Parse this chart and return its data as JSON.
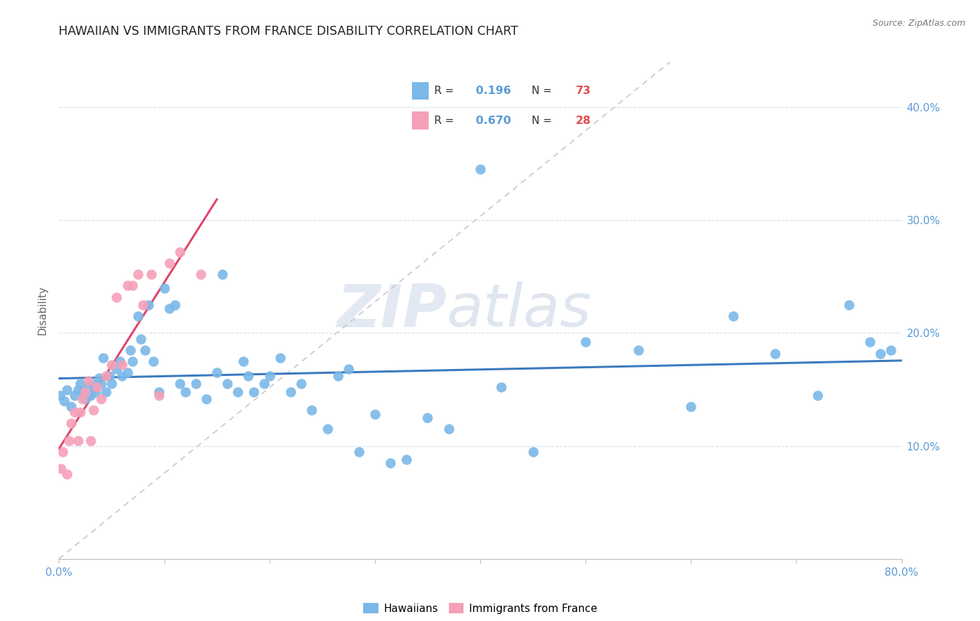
{
  "title": "HAWAIIAN VS IMMIGRANTS FROM FRANCE DISABILITY CORRELATION CHART",
  "source": "Source: ZipAtlas.com",
  "ylabel": "Disability",
  "xlim": [
    0.0,
    0.8
  ],
  "ylim": [
    0.0,
    0.44
  ],
  "R_hawaiians": 0.196,
  "N_hawaiians": 73,
  "R_france": 0.67,
  "N_france": 28,
  "hawaiian_color": "#7ab8e8",
  "france_color": "#f5a0b8",
  "line_hawaiian_color": "#3a7abf",
  "line_france_color": "#e0446a",
  "tick_color": "#5b9bd5",
  "grid_color": "#d8dde8",
  "watermark": "ZIPatlas",
  "hawaiians_x": [
    0.001,
    0.005,
    0.008,
    0.012,
    0.015,
    0.018,
    0.02,
    0.022,
    0.025,
    0.028,
    0.03,
    0.032,
    0.035,
    0.038,
    0.04,
    0.042,
    0.045,
    0.048,
    0.05,
    0.055,
    0.058,
    0.06,
    0.065,
    0.068,
    0.07,
    0.075,
    0.078,
    0.082,
    0.085,
    0.09,
    0.095,
    0.1,
    0.105,
    0.11,
    0.115,
    0.12,
    0.13,
    0.14,
    0.15,
    0.155,
    0.16,
    0.17,
    0.175,
    0.18,
    0.185,
    0.195,
    0.2,
    0.21,
    0.22,
    0.23,
    0.24,
    0.255,
    0.265,
    0.275,
    0.285,
    0.3,
    0.315,
    0.33,
    0.35,
    0.37,
    0.4,
    0.42,
    0.45,
    0.5,
    0.55,
    0.6,
    0.64,
    0.68,
    0.72,
    0.75,
    0.77,
    0.78,
    0.79
  ],
  "hawaiians_y": [
    0.145,
    0.14,
    0.15,
    0.135,
    0.145,
    0.15,
    0.155,
    0.148,
    0.142,
    0.152,
    0.145,
    0.155,
    0.148,
    0.16,
    0.155,
    0.178,
    0.148,
    0.162,
    0.155,
    0.168,
    0.175,
    0.162,
    0.165,
    0.185,
    0.175,
    0.215,
    0.195,
    0.185,
    0.225,
    0.175,
    0.148,
    0.24,
    0.222,
    0.225,
    0.155,
    0.148,
    0.155,
    0.142,
    0.165,
    0.252,
    0.155,
    0.148,
    0.175,
    0.162,
    0.148,
    0.155,
    0.162,
    0.178,
    0.148,
    0.155,
    0.132,
    0.115,
    0.162,
    0.168,
    0.095,
    0.128,
    0.085,
    0.088,
    0.125,
    0.115,
    0.345,
    0.152,
    0.095,
    0.192,
    0.185,
    0.135,
    0.215,
    0.182,
    0.145,
    0.225,
    0.192,
    0.182,
    0.185
  ],
  "france_x": [
    0.002,
    0.004,
    0.008,
    0.01,
    0.012,
    0.015,
    0.018,
    0.02,
    0.022,
    0.025,
    0.028,
    0.03,
    0.033,
    0.036,
    0.04,
    0.045,
    0.05,
    0.055,
    0.06,
    0.065,
    0.07,
    0.075,
    0.08,
    0.088,
    0.095,
    0.105,
    0.115,
    0.135
  ],
  "france_y": [
    0.08,
    0.095,
    0.075,
    0.105,
    0.12,
    0.13,
    0.105,
    0.13,
    0.142,
    0.148,
    0.158,
    0.105,
    0.132,
    0.152,
    0.142,
    0.162,
    0.172,
    0.232,
    0.172,
    0.242,
    0.242,
    0.252,
    0.225,
    0.252,
    0.145,
    0.262,
    0.272,
    0.252
  ]
}
